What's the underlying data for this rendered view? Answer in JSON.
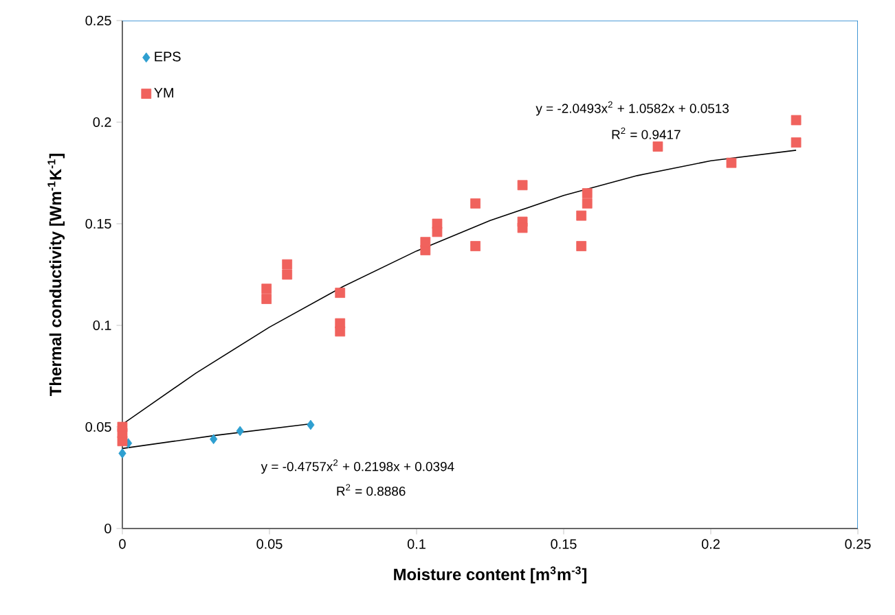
{
  "chart_data": {
    "type": "scatter",
    "xlabel": "Moisture content [m$^{3}$m$^{-3}$]",
    "ylabel": "Thermal conductivity [Wm$^{-1}$K$^{-1}$]",
    "xlim": [
      0,
      0.25
    ],
    "ylim": [
      0,
      0.25
    ],
    "xticks": [
      0,
      0.05,
      0.1,
      0.15,
      0.2,
      0.25
    ],
    "yticks": [
      0,
      0.05,
      0.1,
      0.15,
      0.2,
      0.25
    ],
    "legend": "top left",
    "grid": false,
    "series": [
      {
        "name": "EPS",
        "marker": "diamond",
        "color": "#2e9fd0",
        "x": [
          0,
          0.002,
          0.031,
          0.04,
          0.064
        ],
        "values": [
          0.037,
          0.042,
          0.044,
          0.048,
          0.051
        ]
      },
      {
        "name": "YM",
        "marker": "square",
        "color": "#f0625d",
        "x": [
          0,
          0,
          0,
          0.049,
          0.049,
          0.056,
          0.056,
          0.074,
          0.074,
          0.074,
          0.103,
          0.103,
          0.107,
          0.107,
          0.12,
          0.12,
          0.136,
          0.136,
          0.136,
          0.156,
          0.156,
          0.158,
          0.158,
          0.182,
          0.207,
          0.229,
          0.229
        ],
        "values": [
          0.043,
          0.047,
          0.05,
          0.118,
          0.113,
          0.13,
          0.125,
          0.116,
          0.101,
          0.097,
          0.137,
          0.141,
          0.15,
          0.146,
          0.16,
          0.139,
          0.169,
          0.151,
          0.148,
          0.139,
          0.154,
          0.165,
          0.16,
          0.188,
          0.18,
          0.201,
          0.19
        ]
      },
      {
        "type": "line",
        "marker": "none",
        "line_style": "solid",
        "color": "#000000",
        "x": [
          0,
          0.025,
          0.05,
          0.075,
          0.1,
          0.125,
          0.15,
          0.175,
          0.2,
          0.229
        ],
        "values": [
          0.0513,
          0.0765,
          0.0991,
          0.1191,
          0.1366,
          0.1516,
          0.1639,
          0.1737,
          0.181,
          0.1862
        ]
      },
      {
        "type": "line",
        "marker": "none",
        "line_style": "solid",
        "color": "#000000",
        "x": [
          0,
          0.032,
          0.064
        ],
        "values": [
          0.0394,
          0.0459,
          0.0515
        ]
      }
    ],
    "annotations": [
      "y = -2.0493x$^{2}$ + 1.0582x + 0.0513",
      "R$^{2}$ = 0.9417",
      "y = -0.4757x$^{2}$ + 0.2198x + 0.0394",
      "R$^{2}$ = 0.8886"
    ]
  }
}
